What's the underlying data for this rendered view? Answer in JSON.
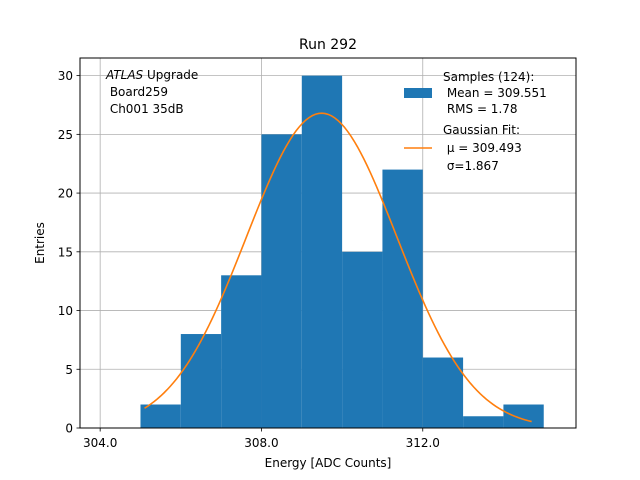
{
  "colors": {
    "bar": "#1f77b4",
    "fit_line": "#ff7f0e",
    "grid": "#b0b0b0",
    "axis": "#000000"
  },
  "chart_data": {
    "type": "bar",
    "title": "Run 292",
    "xlabel": "Energy [ADC Counts]",
    "ylabel": "Entries",
    "xlim": [
      303.5,
      315.8
    ],
    "ylim": [
      0,
      31.5
    ],
    "grid": true,
    "xticks": [
      304.0,
      308.0,
      312.0
    ],
    "xtick_labels": [
      "304.0",
      "308.0",
      "312.0"
    ],
    "yticks": [
      0,
      5,
      10,
      15,
      20,
      25,
      30
    ],
    "ytick_labels": [
      "0",
      "5",
      "10",
      "15",
      "20",
      "25",
      "30"
    ],
    "bin_edges": [
      305.0,
      306.0,
      307.0,
      308.0,
      309.0,
      310.0,
      311.0,
      312.0,
      313.0,
      314.0,
      315.0
    ],
    "counts": [
      2,
      8,
      13,
      25,
      30,
      15,
      22,
      6,
      1,
      2
    ],
    "series": [
      {
        "name": "Samples (124):\n Mean = 309.551\n RMS = 1.78",
        "type": "histogram"
      },
      {
        "name": "Gaussian Fit:\n μ = 309.493\n σ=1.867",
        "type": "line",
        "mu": 309.493,
        "sigma": 1.867,
        "amplitude": 26.8,
        "x_range": [
          305.1,
          314.7
        ]
      }
    ],
    "annotation": {
      "experiment": "ATLAS",
      "suffix": " Upgrade",
      "board": " Board259",
      "channel": " Ch001 35dB"
    },
    "legend": {
      "position": "top-right",
      "samples_lines": [
        "Samples (124):",
        " Mean = 309.551",
        " RMS = 1.78"
      ],
      "fit_lines": [
        "Gaussian Fit:",
        " μ = 309.493",
        " σ=1.867"
      ]
    }
  }
}
